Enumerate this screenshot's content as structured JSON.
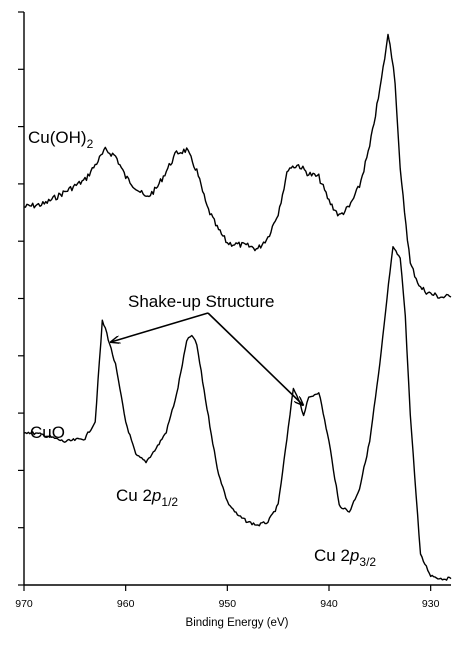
{
  "chart_data": {
    "type": "line",
    "xlabel": "Binding Energy (eV)",
    "ylabel": "",
    "xlim": [
      970,
      928
    ],
    "x_reversed": true,
    "xticks": [
      970,
      960,
      950,
      940,
      930
    ],
    "yticks_count": 10,
    "grid": false,
    "legend": "none",
    "series": [
      {
        "name": "Cu(OH)2",
        "x": [
          970,
          968,
          966,
          964,
          963,
          962,
          961,
          960,
          958,
          957,
          956,
          955,
          954,
          953,
          952,
          951,
          950,
          948,
          947,
          946,
          945,
          944,
          943,
          942,
          941,
          940,
          939,
          938,
          937,
          936,
          935,
          934.2,
          934,
          933.5,
          933,
          932,
          931,
          930,
          929,
          928
        ],
        "y": [
          0.43,
          0.44,
          0.48,
          0.52,
          0.57,
          0.62,
          0.6,
          0.53,
          0.46,
          0.49,
          0.55,
          0.61,
          0.62,
          0.55,
          0.43,
          0.36,
          0.31,
          0.3,
          0.29,
          0.33,
          0.41,
          0.56,
          0.57,
          0.54,
          0.53,
          0.45,
          0.4,
          0.43,
          0.5,
          0.63,
          0.82,
          1.0,
          0.98,
          0.85,
          0.55,
          0.24,
          0.16,
          0.14,
          0.13,
          0.13
        ]
      },
      {
        "name": "CuO",
        "x": [
          970,
          968,
          966,
          964,
          963,
          962.3,
          962,
          961,
          960,
          959,
          958,
          957,
          956,
          955,
          954,
          953.5,
          953,
          952,
          951,
          950,
          949,
          948,
          947,
          946,
          945,
          944,
          943.5,
          943,
          942.5,
          942,
          941,
          940,
          939,
          938,
          937,
          936,
          935,
          934,
          933.7,
          933,
          932.5,
          932,
          931,
          930,
          929,
          928
        ],
        "y": [
          0.45,
          0.44,
          0.42,
          0.43,
          0.48,
          0.78,
          0.76,
          0.65,
          0.48,
          0.38,
          0.36,
          0.4,
          0.45,
          0.56,
          0.72,
          0.74,
          0.71,
          0.52,
          0.34,
          0.24,
          0.2,
          0.18,
          0.17,
          0.18,
          0.23,
          0.46,
          0.58,
          0.55,
          0.5,
          0.55,
          0.57,
          0.42,
          0.23,
          0.21,
          0.28,
          0.42,
          0.65,
          0.93,
          1.0,
          0.97,
          0.8,
          0.5,
          0.08,
          0.02,
          0.01,
          0.01
        ]
      }
    ],
    "annotations": {
      "cuoh2_label_main": "Cu(OH)",
      "cuoh2_label_sub": "2",
      "cuo_label": "CuO",
      "shakeup_label": "Shake-up Structure",
      "cu2p12_main": "Cu 2",
      "cu2p12_italic": "p",
      "cu2p12_sub": "1/2",
      "cu2p32_main": "Cu 2",
      "cu2p32_italic": "p",
      "cu2p32_sub": "3/2"
    }
  }
}
